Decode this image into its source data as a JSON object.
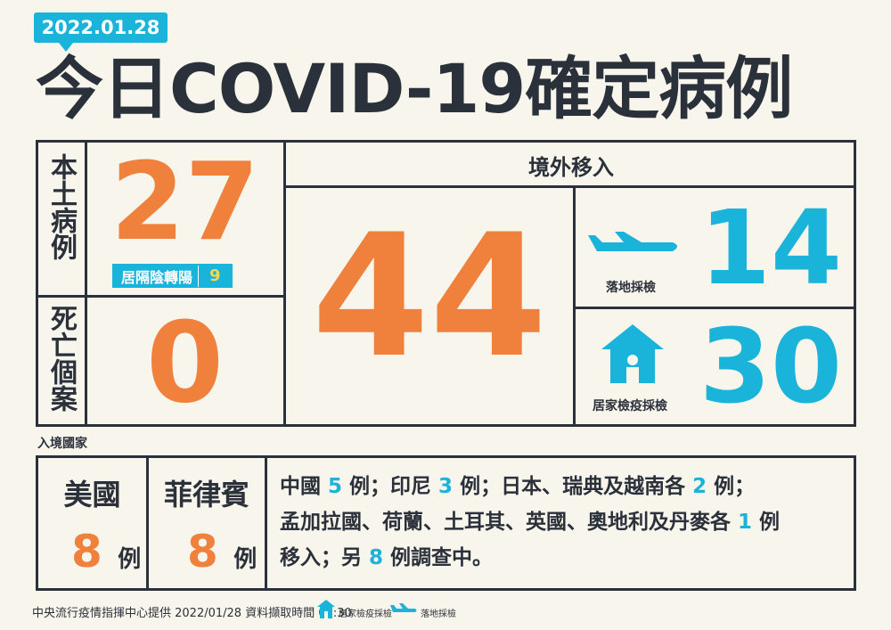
{
  "date": "2022.01.28",
  "title": "今日COVID-19確定病例",
  "local": {
    "label": "本土病例",
    "count": "27",
    "badge_label": "居隔陰轉陽",
    "badge_count": "9"
  },
  "deaths": {
    "label": "死亡個案",
    "count": "0"
  },
  "imported": {
    "label": "境外移入",
    "count": "44",
    "airport": {
      "label": "落地採檢",
      "count": "14"
    },
    "home": {
      "label": "居家檢疫採檢",
      "count": "30"
    }
  },
  "countries": {
    "label": "入境國家",
    "usa": {
      "name": "美國",
      "count": "8",
      "unit": "例"
    },
    "philippines": {
      "name": "菲律賓",
      "count": "8",
      "unit": "例"
    },
    "other": {
      "l1a": "中國 ",
      "l1b": "5",
      "l1c": " 例；印尼 ",
      "l1d": "3",
      "l1e": " 例；日本、瑞典及越南各 ",
      "l1f": "2",
      "l1g": " 例；",
      "l2a": "孟加拉國、荷蘭、土耳其、英國、奧地利及丹麥各 ",
      "l2b": "1",
      "l2c": " 例",
      "l3a": "移入；另 ",
      "l3b": "8",
      "l3c": " 例調查中。"
    }
  },
  "footer": {
    "source": "中央流行疫情指揮中心提供 2022/01/28 資料擷取時間 09:30",
    "legend_home": "居家檢疫採檢",
    "legend_airport": "落地採檢"
  },
  "colors": {
    "orange": "#f0813c",
    "blue": "#1ab3d9",
    "dark": "#2b313a",
    "background": "#f8f5ec"
  }
}
